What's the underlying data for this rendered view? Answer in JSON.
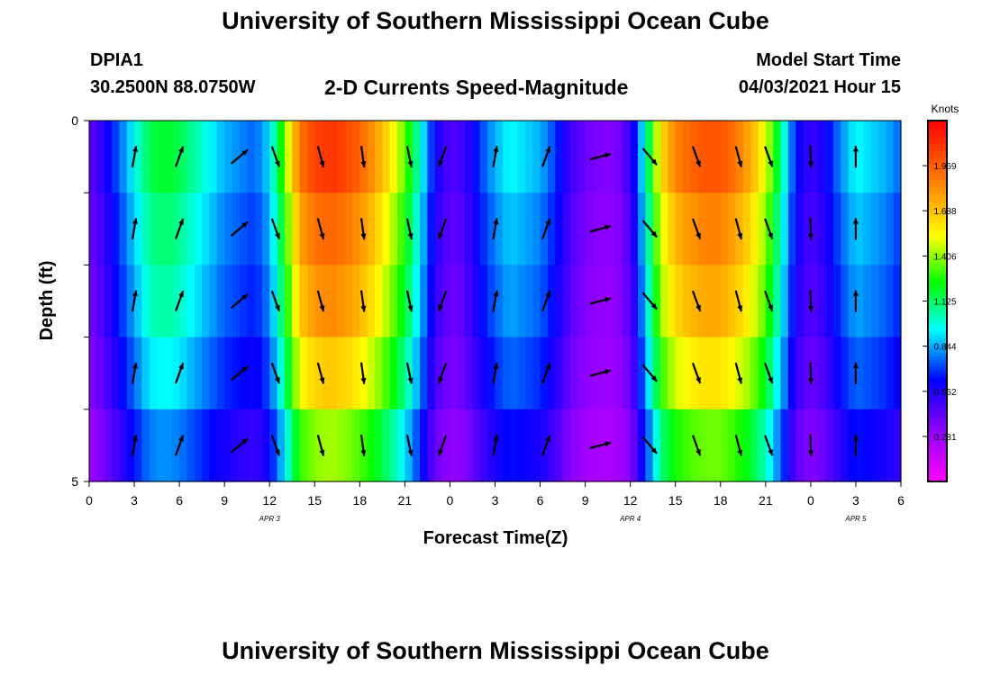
{
  "header": {
    "title": "University of Southern Mississippi Ocean Cube",
    "station": "DPIA1",
    "latlon": "30.2500N  88.0750W",
    "subtitle": "2-D Currents Speed-Magnitude",
    "model_start_label": "Model Start Time",
    "model_start_value": "04/03/2021 Hour 15"
  },
  "footer": {
    "title": "University of Southern Mississippi Ocean Cube"
  },
  "chart_data": {
    "type": "heatmap",
    "title": "2-D Currents Speed-Magnitude",
    "xlabel": "Forecast Time(Z)",
    "ylabel": "Depth (ft)",
    "x_tick_labels": [
      "0",
      "3",
      "6",
      "9",
      "12",
      "15",
      "18",
      "21",
      "0",
      "3",
      "6",
      "9",
      "12",
      "15",
      "18",
      "21",
      "0",
      "3",
      "6"
    ],
    "date_labels": [
      {
        "text": "APR 3",
        "tick_index": 4
      },
      {
        "text": "APR 4",
        "tick_index": 12
      },
      {
        "text": "APR 5",
        "tick_index": 17
      }
    ],
    "y_tick_labels": [
      "0",
      "5"
    ],
    "ylim": [
      0,
      5
    ],
    "hours_range": [
      0,
      54
    ],
    "colorbar": {
      "title": "Knots",
      "ticks": [
        "1.969",
        "1.688",
        "1.406",
        "1.125",
        "0.844",
        "0.562",
        "0.281"
      ],
      "range": [
        0,
        2.25
      ]
    },
    "depth_layers": [
      0.5,
      1.5,
      2.5,
      3.5,
      4.5
    ],
    "speed_profile": [
      [
        0,
        0.42
      ],
      [
        1,
        0.55
      ],
      [
        2,
        0.75
      ],
      [
        3,
        0.95
      ],
      [
        4,
        1.15
      ],
      [
        5,
        1.2
      ],
      [
        6,
        1.15
      ],
      [
        7,
        1.05
      ],
      [
        8,
        0.95
      ],
      [
        9,
        0.85
      ],
      [
        10,
        0.8
      ],
      [
        11,
        0.75
      ],
      [
        12,
        0.9
      ],
      [
        13,
        1.35
      ],
      [
        14,
        1.9
      ],
      [
        15,
        2.05
      ],
      [
        16,
        2.1
      ],
      [
        17,
        2.05
      ],
      [
        18,
        1.95
      ],
      [
        19,
        1.8
      ],
      [
        20,
        1.6
      ],
      [
        21,
        1.35
      ],
      [
        22,
        1.0
      ],
      [
        23,
        0.6
      ],
      [
        24,
        0.45
      ],
      [
        25,
        0.5
      ],
      [
        26,
        0.7
      ],
      [
        27,
        0.85
      ],
      [
        28,
        0.95
      ],
      [
        29,
        0.9
      ],
      [
        30,
        0.85
      ],
      [
        31,
        0.7
      ],
      [
        32,
        0.5
      ],
      [
        33,
        0.4
      ],
      [
        34,
        0.35
      ],
      [
        35,
        0.35
      ],
      [
        36,
        0.5
      ],
      [
        37,
        1.0
      ],
      [
        38,
        1.6
      ],
      [
        39,
        1.85
      ],
      [
        40,
        1.95
      ],
      [
        41,
        2.0
      ],
      [
        42,
        2.0
      ],
      [
        43,
        1.9
      ],
      [
        44,
        1.75
      ],
      [
        45,
        1.5
      ],
      [
        46,
        1.1
      ],
      [
        47,
        0.65
      ],
      [
        48,
        0.5
      ],
      [
        49,
        0.6
      ],
      [
        50,
        0.8
      ],
      [
        51,
        0.95
      ],
      [
        52,
        0.9
      ],
      [
        53,
        0.85
      ],
      [
        54,
        0.75
      ]
    ],
    "depth_factors": [
      1.0,
      0.93,
      0.88,
      0.8,
      0.68
    ],
    "vectors": [
      {
        "hour": 3,
        "dir": 10
      },
      {
        "hour": 6,
        "dir": 20
      },
      {
        "hour": 10,
        "dir": 50
      },
      {
        "hour": 12.4,
        "dir": 160
      },
      {
        "hour": 15.4,
        "dir": 165
      },
      {
        "hour": 18.2,
        "dir": 172
      },
      {
        "hour": 21.3,
        "dir": 168
      },
      {
        "hour": 23.5,
        "dir": 200
      },
      {
        "hour": 27,
        "dir": 10
      },
      {
        "hour": 30.4,
        "dir": 20
      },
      {
        "hour": 34,
        "dir": 75
      },
      {
        "hour": 37.3,
        "dir": 140
      },
      {
        "hour": 40.4,
        "dir": 160
      },
      {
        "hour": 43.2,
        "dir": 165
      },
      {
        "hour": 45.2,
        "dir": 160
      },
      {
        "hour": 48,
        "dir": 178
      },
      {
        "hour": 51,
        "dir": 0
      }
    ]
  }
}
